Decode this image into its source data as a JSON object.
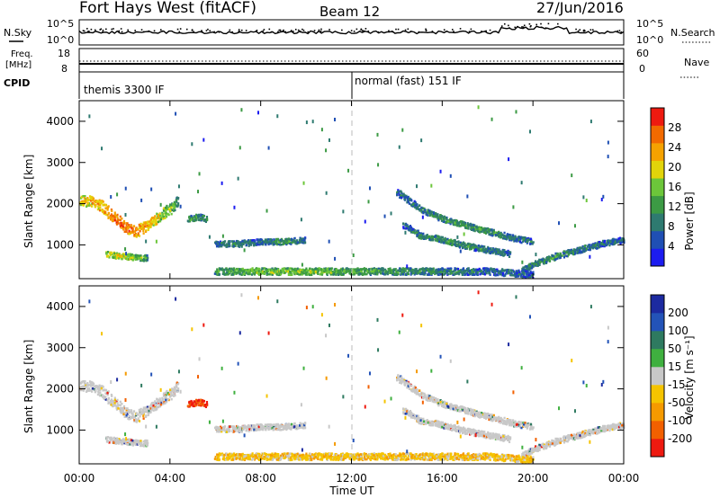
{
  "header": {
    "station": "Fort Hays West (fitACF)",
    "beam": "Beam 12",
    "date": "27/Jun/2016"
  },
  "param_panels": {
    "nsky_label": "N.Sky",
    "nsearch_label": "N.Search",
    "noise_ticks": [
      "10^5",
      "10^0"
    ],
    "freq_label_top": "Freq.",
    "freq_label_unit": "[MHz]",
    "freq_ticks": [
      "18",
      "8"
    ],
    "nave_label": "Nave",
    "nave_ticks": [
      "60",
      "0"
    ],
    "cpid_label": "CPID",
    "cpid_segments": [
      {
        "label": "themis 3300 IF",
        "start_hour": 0
      },
      {
        "label": "normal (fast) 151 IF",
        "start_hour": 12
      }
    ]
  },
  "axes": {
    "x_label": "Time UT",
    "x_ticks": [
      "00:00",
      "04:00",
      "08:00",
      "12:00",
      "16:00",
      "20:00",
      "00:00"
    ],
    "x_tick_hours": [
      0,
      4,
      8,
      12,
      16,
      20,
      24
    ],
    "y_label": "Slant Range [km]",
    "y_ticks": [
      "1000",
      "2000",
      "3000",
      "4000"
    ],
    "y_tick_values": [
      1000,
      2000,
      3000,
      4000
    ],
    "y_range": [
      180,
      4500
    ],
    "x_range": [
      0,
      24
    ]
  },
  "colorbars": {
    "power": {
      "label": "Power [dB]",
      "ticks": [
        "4",
        "8",
        "12",
        "16",
        "20",
        "24",
        "28"
      ],
      "tick_values": [
        4,
        8,
        12,
        16,
        20,
        24,
        28
      ],
      "range": [
        0,
        32
      ],
      "colors": [
        "#1c1cf0",
        "#1f4fb4",
        "#2e7a70",
        "#3c9a44",
        "#6cc63a",
        "#e2d40a",
        "#f5a200",
        "#f26a00",
        "#ee1a10"
      ]
    },
    "velocity": {
      "label": "Velocity [m s⁻¹]",
      "ticks": [
        "200",
        "100",
        "50",
        "15",
        "-15",
        "-50",
        "-100",
        "-200"
      ],
      "colors": [
        "#1c2aa0",
        "#2353b8",
        "#2e7a60",
        "#3fb03f",
        "#c8c8c8",
        "#f5c400",
        "#f59a00",
        "#f26000",
        "#ee1a10"
      ]
    }
  },
  "chart_data": {
    "type": "heatmap",
    "x": "Time UT (hours)",
    "y": "Slant Range (km)",
    "power_features": [
      {
        "name": "",
        "points": [
          [
            0,
            2100
          ],
          [
            0.5,
            2080
          ],
          [
            1,
            1950
          ],
          [
            1.5,
            1700
          ],
          [
            2,
            1450
          ],
          [
            2.5,
            1350
          ],
          [
            3,
            1500
          ],
          [
            3.5,
            1700
          ],
          [
            4,
            1900
          ],
          [
            4.4,
            2100
          ]
        ],
        "values": [
          20,
          22,
          24,
          26,
          28,
          26,
          24,
          20,
          16,
          12
        ]
      },
      {
        "name": "",
        "points": [
          [
            1.2,
            800
          ],
          [
            1.8,
            750
          ],
          [
            2.5,
            720
          ],
          [
            3,
            700
          ]
        ],
        "values": [
          18,
          20,
          16,
          12
        ]
      },
      {
        "name": "",
        "points": [
          [
            4.8,
            1650
          ],
          [
            5.2,
            1700
          ],
          [
            5.6,
            1650
          ]
        ],
        "values": [
          12,
          12,
          10
        ]
      },
      {
        "name": "",
        "points": [
          [
            6,
            1050
          ],
          [
            7,
            1050
          ],
          [
            8,
            1100
          ],
          [
            9,
            1100
          ],
          [
            10,
            1150
          ]
        ],
        "values": [
          8,
          10,
          8,
          12,
          8
        ]
      },
      {
        "name": "",
        "points": [
          [
            14,
            2300
          ],
          [
            15,
            1900
          ],
          [
            16,
            1650
          ],
          [
            17,
            1500
          ],
          [
            18,
            1350
          ],
          [
            19,
            1200
          ],
          [
            20,
            1100
          ]
        ],
        "values": [
          8,
          10,
          12,
          12,
          12,
          10,
          8
        ]
      },
      {
        "name": "",
        "points": [
          [
            14.3,
            1500
          ],
          [
            15,
            1250
          ],
          [
            16,
            1150
          ],
          [
            17,
            1000
          ],
          [
            18,
            900
          ],
          [
            19,
            800
          ]
        ],
        "values": [
          8,
          10,
          12,
          12,
          10,
          8
        ]
      },
      {
        "name": "",
        "points": [
          [
            19.5,
            400
          ],
          [
            20,
            550
          ],
          [
            21,
            750
          ],
          [
            22,
            900
          ],
          [
            23,
            1050
          ],
          [
            24,
            1150
          ]
        ],
        "values": [
          8,
          10,
          12,
          10,
          8,
          8
        ]
      },
      {
        "name": "",
        "points": [
          [
            6,
            380
          ],
          [
            8,
            380
          ],
          [
            10,
            380
          ],
          [
            12,
            380
          ],
          [
            14,
            380
          ],
          [
            16,
            380
          ],
          [
            18,
            380
          ],
          [
            20,
            300
          ]
        ],
        "values": [
          12,
          16,
          16,
          14,
          12,
          10,
          8,
          8
        ]
      }
    ]
  }
}
